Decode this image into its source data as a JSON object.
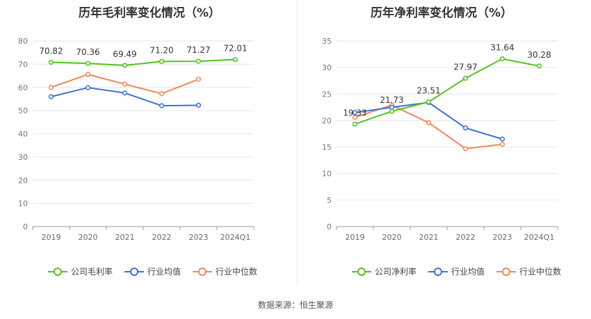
{
  "chart_data": [
    {
      "type": "line",
      "title": "历年毛利率变化情况（%）",
      "categories": [
        "2019",
        "2020",
        "2021",
        "2022",
        "2023",
        "2024Q1"
      ],
      "ylim": [
        0,
        80
      ],
      "yticks": [
        0,
        10,
        20,
        30,
        40,
        50,
        60,
        70,
        80
      ],
      "grid": true,
      "legend_position": "bottom",
      "series": [
        {
          "name": "公司毛利率",
          "color": "#52c41a",
          "values": [
            70.82,
            70.36,
            69.49,
            71.2,
            71.27,
            72.01
          ],
          "labels": [
            "70.82",
            "70.36",
            "69.49",
            "71.20",
            "71.27",
            "72.01"
          ]
        },
        {
          "name": "行业均值",
          "color": "#3a73d6",
          "values": [
            56.0,
            59.9,
            57.6,
            52.1,
            52.3,
            null
          ]
        },
        {
          "name": "行业中位数",
          "color": "#f08858",
          "values": [
            60.0,
            65.6,
            61.4,
            57.3,
            63.5,
            null
          ]
        }
      ]
    },
    {
      "type": "line",
      "title": "历年净利率变化情况（%）",
      "categories": [
        "2019",
        "2020",
        "2021",
        "2022",
        "2023",
        "2024Q1"
      ],
      "ylim": [
        0,
        35
      ],
      "yticks": [
        0,
        5,
        10,
        15,
        20,
        25,
        30,
        35
      ],
      "grid": true,
      "legend_position": "bottom",
      "series": [
        {
          "name": "公司净利率",
          "color": "#52c41a",
          "values": [
            19.33,
            21.73,
            23.51,
            27.97,
            31.64,
            30.28
          ],
          "labels": [
            "19.33",
            "21.73",
            "23.51",
            "27.97",
            "31.64",
            "30.28"
          ]
        },
        {
          "name": "行业均值",
          "color": "#3a73d6",
          "values": [
            21.5,
            22.5,
            23.4,
            18.6,
            16.5,
            null
          ]
        },
        {
          "name": "行业中位数",
          "color": "#f08858",
          "values": [
            20.6,
            22.9,
            19.6,
            14.7,
            15.5,
            null
          ]
        }
      ]
    }
  ],
  "source": "数据来源：恒生聚源"
}
